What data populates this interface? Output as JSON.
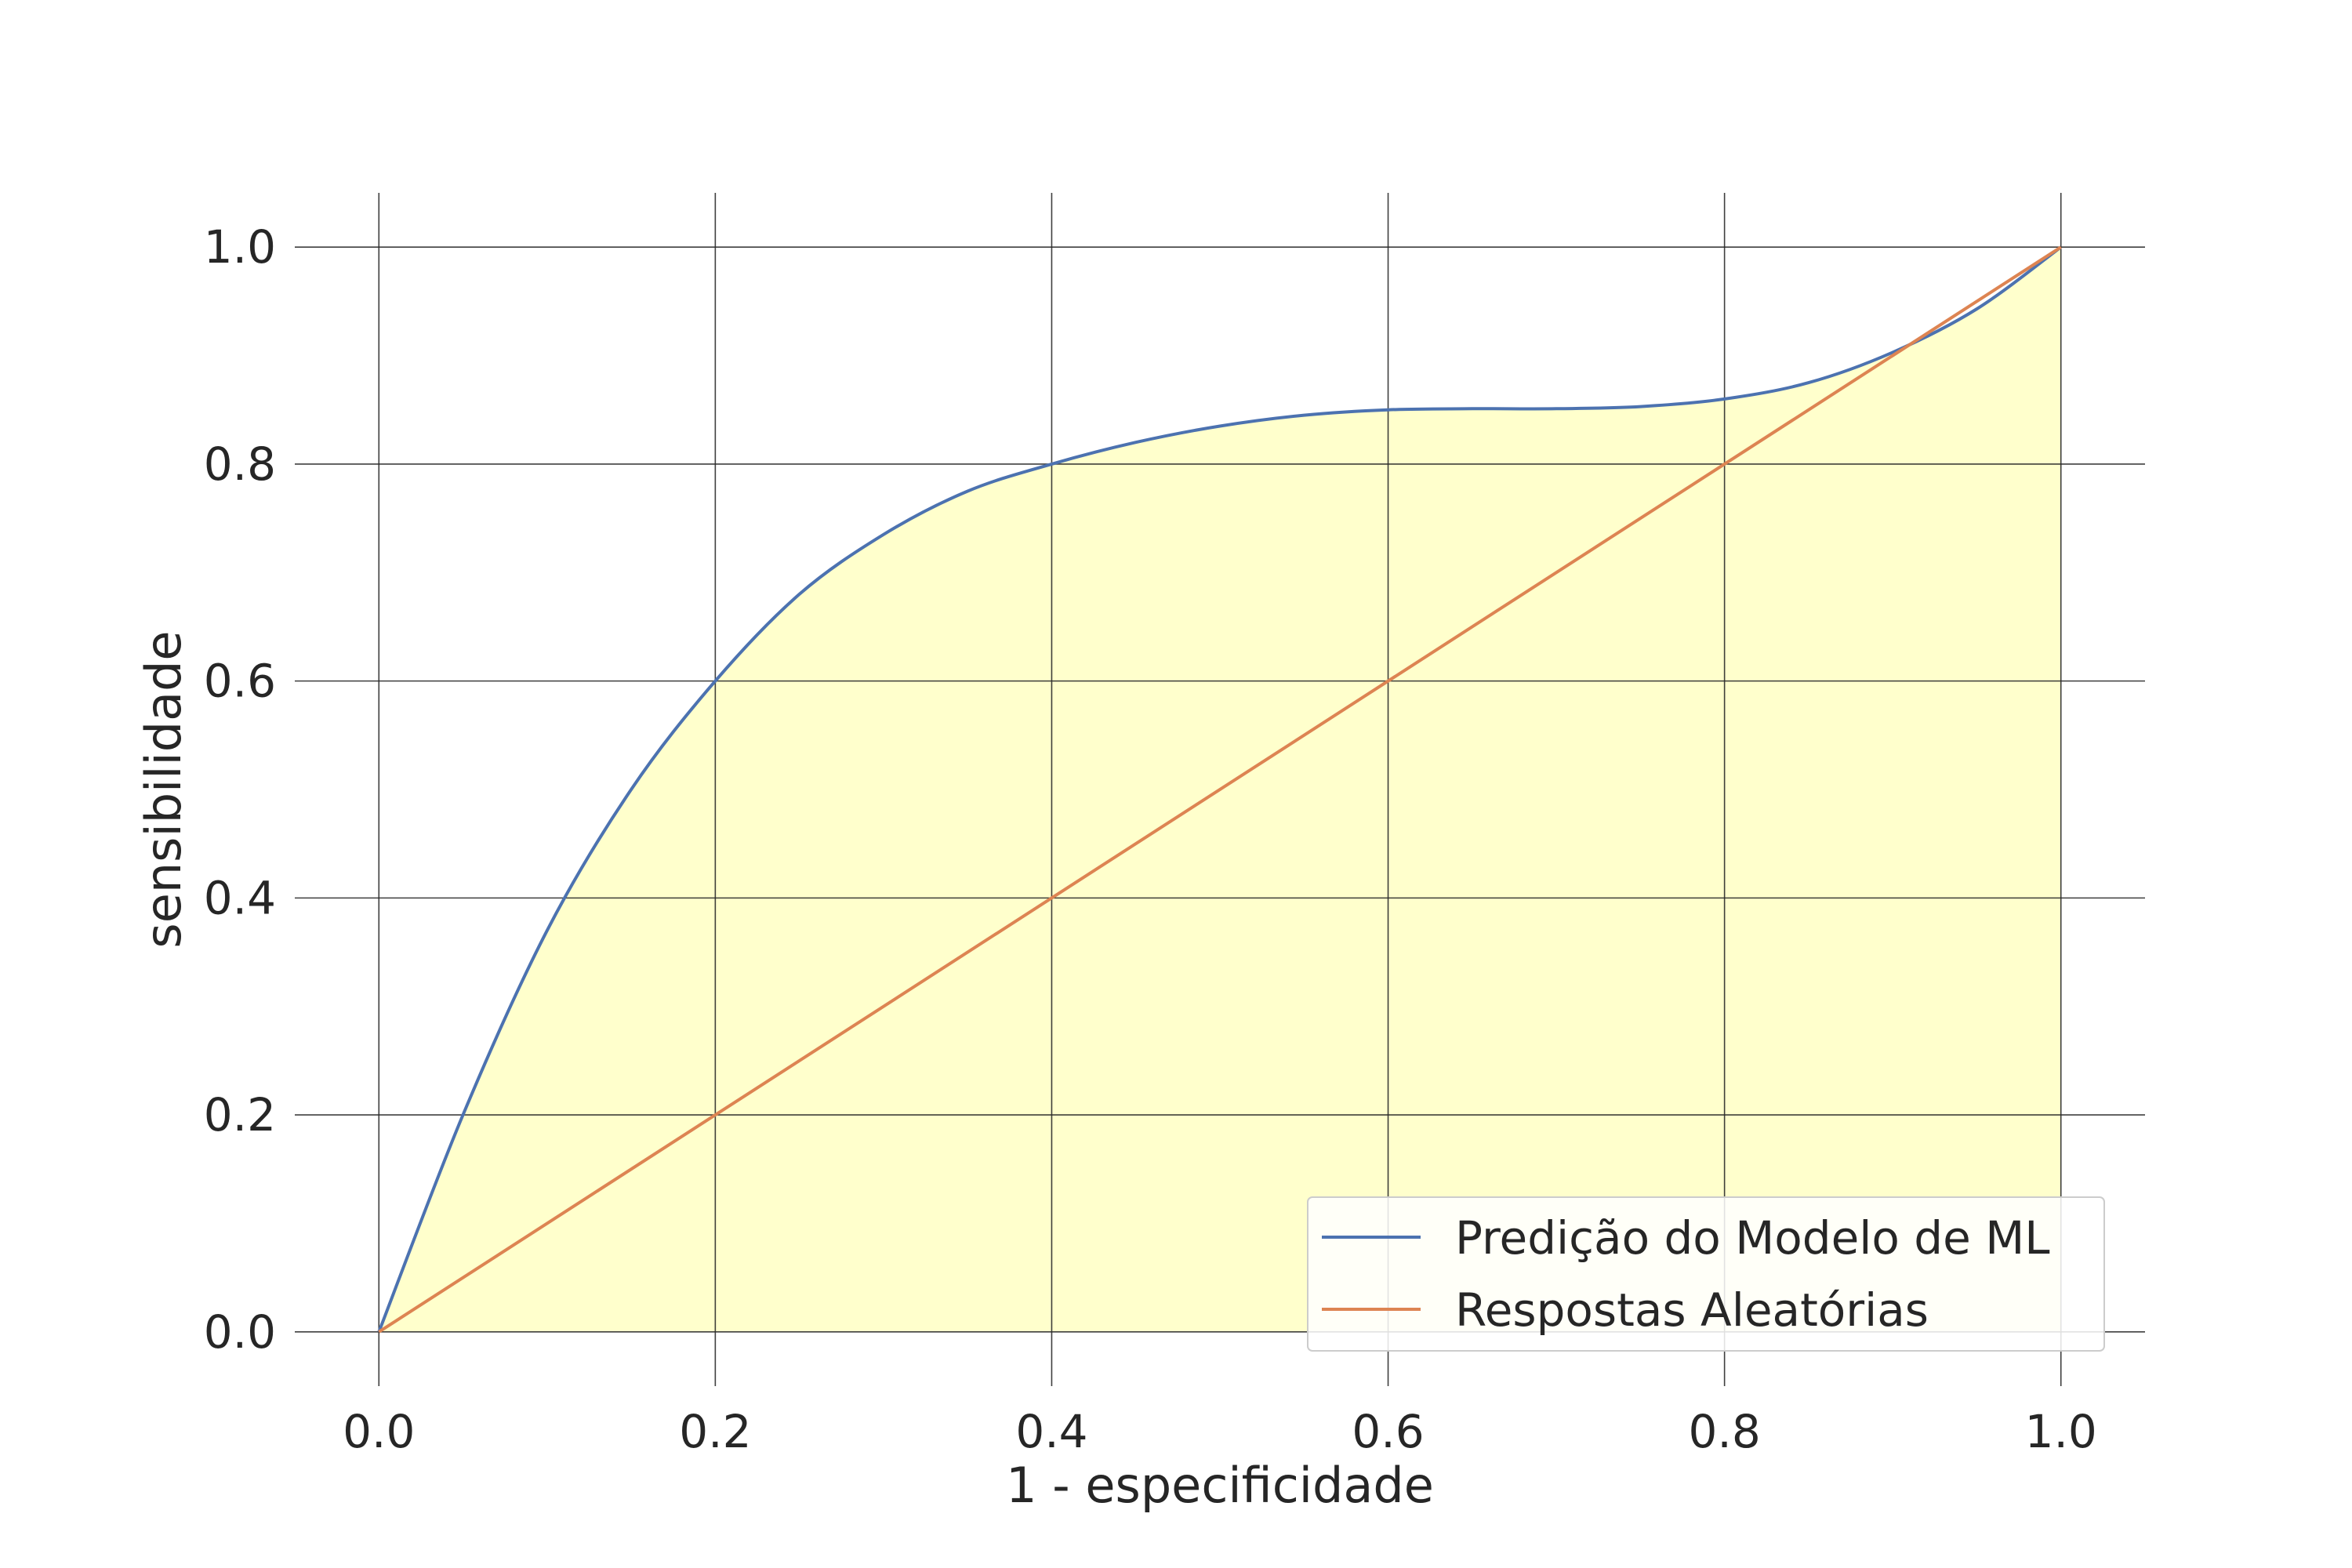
{
  "chart_data": {
    "type": "line",
    "title": "",
    "xlabel": "1 - especificidade",
    "ylabel": "sensibilidade",
    "xlim": [
      -0.05,
      1.05
    ],
    "ylim": [
      -0.05,
      1.05
    ],
    "xticks": [
      0.0,
      0.2,
      0.4,
      0.6,
      0.8,
      1.0
    ],
    "yticks": [
      0.0,
      0.2,
      0.4,
      0.6,
      0.8,
      1.0
    ],
    "xtick_labels": [
      "0.0",
      "0.2",
      "0.4",
      "0.6",
      "0.8",
      "1.0"
    ],
    "ytick_labels": [
      "0.0",
      "0.2",
      "0.4",
      "0.6",
      "0.8",
      "1.0"
    ],
    "grid": true,
    "legend_position": "lower-right",
    "fill": {
      "under_series": "Predição do Modelo de ML",
      "color": "#ffffcc"
    },
    "series": [
      {
        "name": "Predição do Modelo de ML",
        "color": "#4c72b0",
        "x": [
          0.0,
          0.05,
          0.1,
          0.15,
          0.2,
          0.25,
          0.3,
          0.35,
          0.4,
          0.45,
          0.5,
          0.55,
          0.6,
          0.65,
          0.7,
          0.75,
          0.8,
          0.85,
          0.9,
          0.95,
          1.0
        ],
        "y": [
          0.0,
          0.2,
          0.37,
          0.5,
          0.6,
          0.68,
          0.735,
          0.775,
          0.8,
          0.82,
          0.835,
          0.845,
          0.85,
          0.851,
          0.851,
          0.853,
          0.86,
          0.875,
          0.903,
          0.943,
          1.0
        ]
      },
      {
        "name": "Respostas Aleatórias",
        "color": "#dd8452",
        "x": [
          0.0,
          1.0
        ],
        "y": [
          0.0,
          1.0
        ]
      }
    ]
  }
}
